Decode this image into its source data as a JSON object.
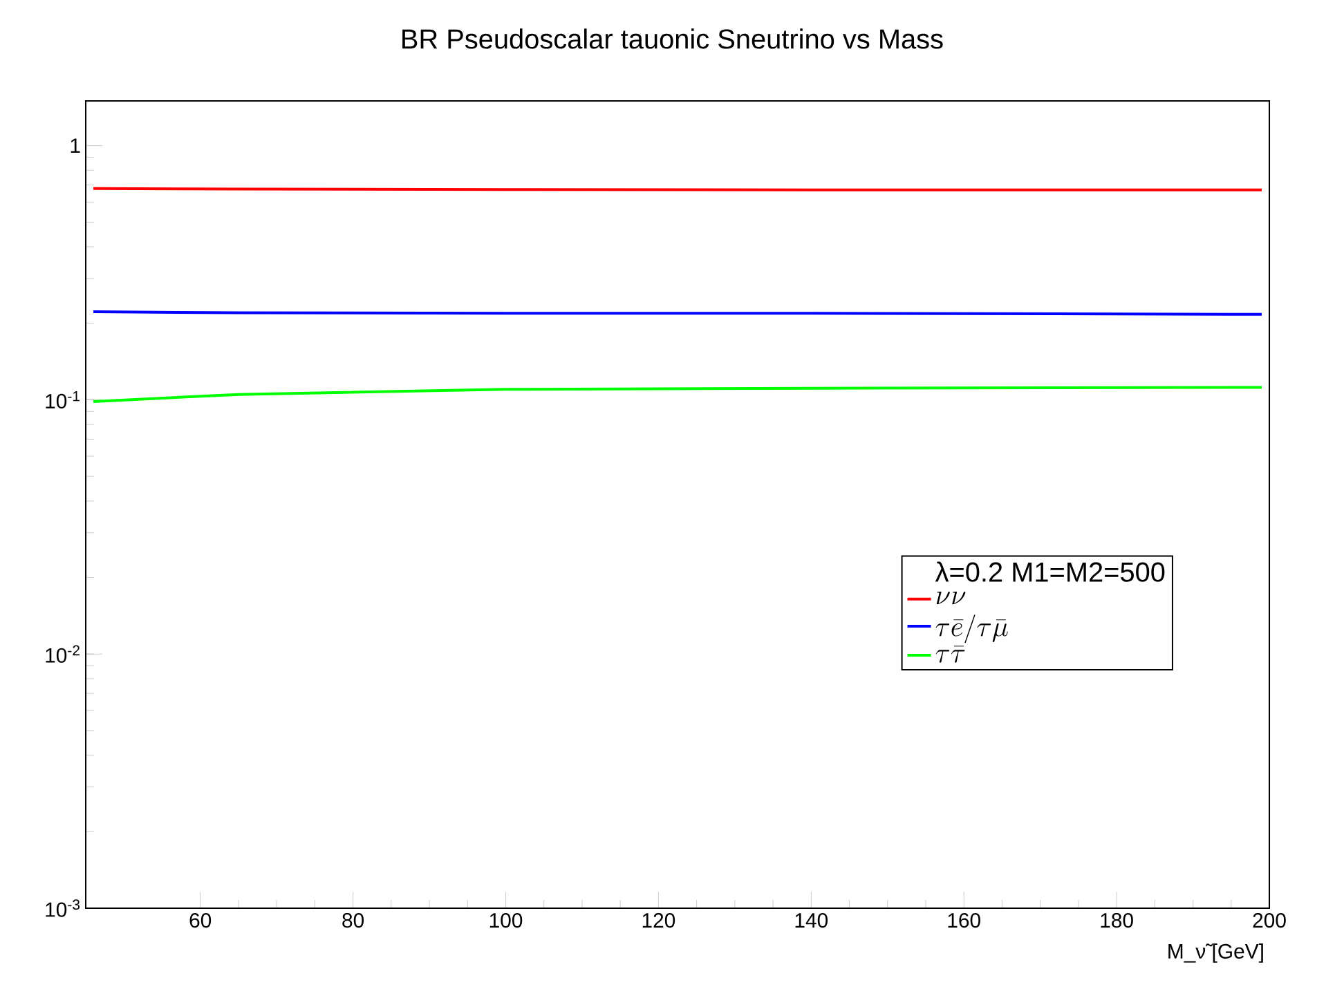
{
  "chart_data": {
    "type": "line",
    "title": "BR Pseudoscalar tauonic Sneutrino vs Mass",
    "xlabel": "M_ν̃ [GeV]",
    "legend_title": "λ=0.2 M1=M2=500",
    "log": "y",
    "legend": "right",
    "grid": false,
    "marker": "none",
    "line_style": "solid",
    "xlim": [
      45,
      200
    ],
    "ylim": [
      0.001,
      1.5
    ],
    "xticks": [
      60,
      80,
      100,
      120,
      140,
      160,
      180,
      200
    ],
    "yticks": [
      {
        "value": 0.001,
        "label": "10$^{-3}$"
      },
      {
        "value": 0.01,
        "label": "10$^{-2}$"
      },
      {
        "value": 0.1,
        "label": "10$^{-1}$"
      },
      1
    ],
    "x": [
      46,
      65,
      100,
      140,
      199
    ],
    "series": [
      {
        "name": "\\nu\\nu",
        "color": "#ff0000",
        "values": [
          0.678,
          0.675,
          0.672,
          0.67,
          0.67
        ]
      },
      {
        "name": "\\tau\\bar{e}/\\tau\\bar{\\mu}",
        "color": "#0000ff",
        "values": [
          0.222,
          0.22,
          0.219,
          0.219,
          0.217
        ]
      },
      {
        "name": "\\tau\\bar{\\tau}",
        "color": "#00ff00",
        "values": [
          0.0985,
          0.105,
          0.11,
          0.111,
          0.112
        ]
      }
    ]
  }
}
